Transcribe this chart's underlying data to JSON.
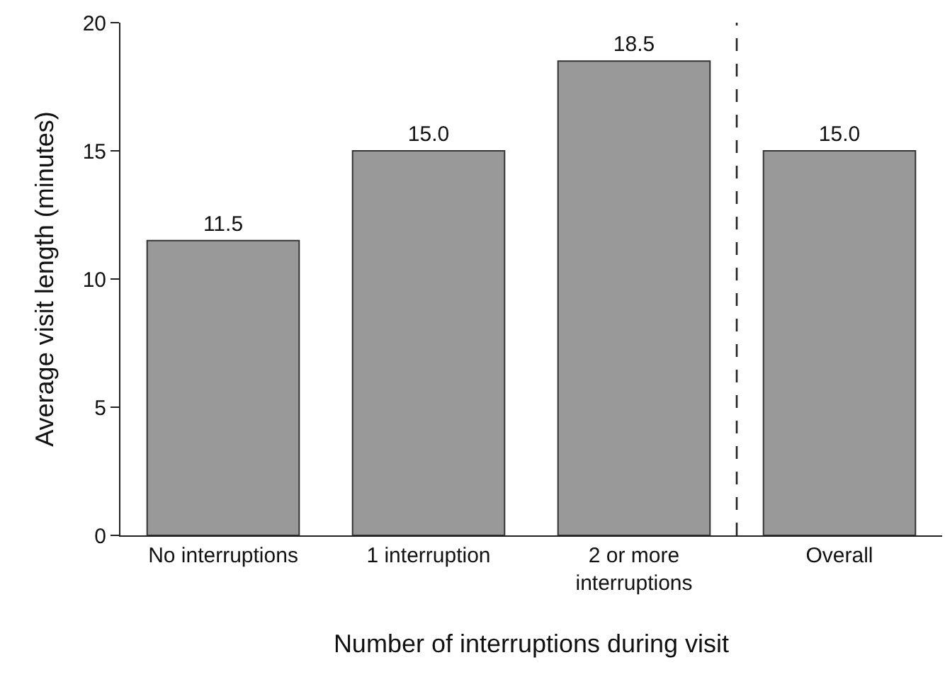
{
  "chart_data": {
    "type": "bar",
    "xlabel": "Number of interruptions during visit",
    "ylabel": "Average visit length (minutes)",
    "categories": [
      "No interruptions",
      "1 interruption",
      "2 or more interruptions",
      "Overall"
    ],
    "values": [
      11.5,
      15.0,
      18.5,
      15.0
    ],
    "value_labels": [
      "11.5",
      "15.0",
      "18.5",
      "15.0"
    ],
    "color": "#999999",
    "ylim": [
      0,
      20
    ],
    "yticks": [
      0,
      5,
      10,
      15,
      20
    ]
  }
}
